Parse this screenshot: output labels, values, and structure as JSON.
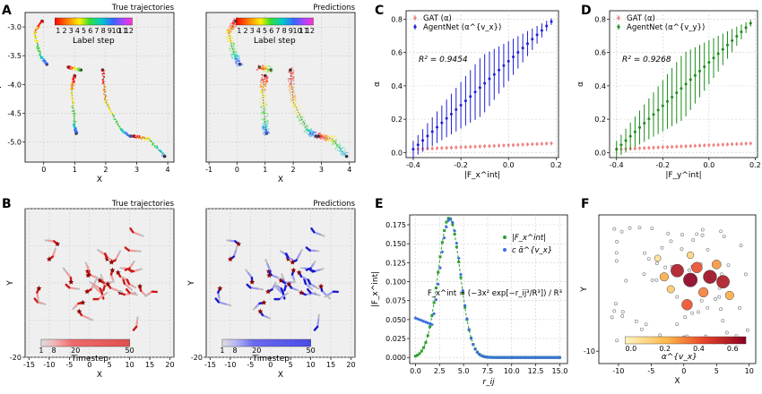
{
  "figure": {
    "panel_letters": {
      "A": "A",
      "B": "B",
      "C": "C",
      "D": "D",
      "E": "E",
      "F": "F"
    }
  },
  "chart_data": [
    {
      "panel": "A-left",
      "type": "scatter",
      "title": "True trajectories",
      "xlabel": "X",
      "ylabel": "Y",
      "xlim": [
        -0.6,
        4.2
      ],
      "ylim": [
        -5.35,
        -2.75
      ],
      "xticks": [
        "0",
        "1",
        "2",
        "3",
        "4"
      ],
      "yticks": [
        "-3.0",
        "-3.5",
        "-4.0",
        "-4.5",
        "-5.0"
      ],
      "colorbar_label": "Label step",
      "colorbar_ticks": [
        "1",
        "2",
        "3",
        "4",
        "5",
        "6",
        "7",
        "8",
        "9",
        "10",
        "11",
        "12"
      ],
      "trajectories": [
        [
          [
            -0.05,
            -2.9
          ],
          [
            -0.3,
            -3.1
          ],
          [
            -0.1,
            -3.5
          ],
          [
            0.1,
            -3.65
          ]
        ],
        [
          [
            0.8,
            -3.7
          ],
          [
            1.2,
            -3.75
          ]
        ],
        [
          [
            1.0,
            -3.85
          ],
          [
            0.9,
            -4.1
          ],
          [
            1.0,
            -4.7
          ],
          [
            1.05,
            -4.85
          ]
        ],
        [
          [
            1.9,
            -3.75
          ],
          [
            2.0,
            -4.3
          ],
          [
            2.5,
            -4.8
          ],
          [
            2.8,
            -4.9
          ]
        ],
        [
          [
            2.9,
            -4.9
          ],
          [
            3.4,
            -4.95
          ],
          [
            3.9,
            -5.25
          ]
        ]
      ]
    },
    {
      "panel": "A-right",
      "type": "scatter",
      "title": "Predictions",
      "xlabel": "X",
      "ylabel": "",
      "xlim": [
        -1.1,
        4.2
      ],
      "ylim": [
        -5.35,
        -2.75
      ],
      "xticks": [
        "-1",
        "0",
        "1",
        "2",
        "3",
        "4"
      ],
      "yticks": [
        "-3.0",
        "-3.5",
        "-4.0",
        "-4.5",
        "-5.0"
      ],
      "colorbar_label": "Label step",
      "colorbar_ticks": [
        "1",
        "2",
        "3",
        "4",
        "5",
        "6",
        "7",
        "8",
        "9",
        "10",
        "11",
        "12"
      ]
    },
    {
      "panel": "B-left",
      "type": "scatter",
      "title": "True trajectories",
      "xlabel": "X",
      "ylabel": "Y",
      "xlim": [
        -16,
        21
      ],
      "ylim": [
        -20,
        20
      ],
      "xticks": [
        "-15",
        "-10",
        "-5",
        "0",
        "5",
        "10",
        "15",
        "20"
      ],
      "yticks": [
        "-20"
      ],
      "colorbar_label": "Timestep",
      "colorbar_ticks": [
        "1",
        "8",
        "20",
        "50"
      ]
    },
    {
      "panel": "B-right",
      "type": "scatter",
      "title": "Predictions",
      "xlabel": "X",
      "ylabel": "Y",
      "xlim": [
        -16,
        21
      ],
      "ylim": [
        -20,
        20
      ],
      "xticks": [
        "-15",
        "-10",
        "-5",
        "0",
        "5",
        "10",
        "15",
        "20"
      ],
      "yticks": [
        "-20"
      ],
      "colorbar_label": "Timestep",
      "colorbar_ticks": [
        "1",
        "8",
        "20",
        "50"
      ]
    },
    {
      "panel": "C",
      "type": "scatter",
      "xlabel": "|F_x^int|",
      "ylabel": "α",
      "xlim": [
        -0.43,
        0.21
      ],
      "ylim": [
        -0.03,
        0.85
      ],
      "xticks": [
        "-0.4",
        "-0.2",
        "0.0",
        "0.2"
      ],
      "yticks": [
        "0.0",
        "0.2",
        "0.4",
        "0.6",
        "0.8"
      ],
      "annotation": "R² = 0.9454",
      "legend": [
        "GAT (α)",
        "AgentNet (α^{v_x})"
      ],
      "series": [
        {
          "name": "GAT (α)",
          "color": "#f08080",
          "start": 0.02,
          "end": 0.055,
          "err": 0.012
        },
        {
          "name": "AgentNet (α^{v_x})",
          "color": "#1f1fd6",
          "start": 0.02,
          "end": 0.785,
          "err_start": 0.05,
          "err_mid": 0.18,
          "err_end": 0.02
        }
      ]
    },
    {
      "panel": "D",
      "type": "scatter",
      "xlabel": "|F_y^int|",
      "ylabel": "α",
      "xlim": [
        -0.43,
        0.21
      ],
      "ylim": [
        -0.03,
        0.85
      ],
      "xticks": [
        "-0.4",
        "-0.2",
        "0.0",
        "0.2"
      ],
      "yticks": [
        "0.0",
        "0.2",
        "0.4",
        "0.6",
        "0.8"
      ],
      "annotation": "R² = 0.9268",
      "legend": [
        "GAT (α)",
        "AgentNet (α^{v_y})"
      ],
      "series": [
        {
          "name": "GAT (α)",
          "color": "#f08080",
          "start": 0.02,
          "end": 0.055,
          "err": 0.012
        },
        {
          "name": "AgentNet (α^{v_y})",
          "color": "#1a8c1a",
          "start": 0.02,
          "end": 0.775,
          "err_start": 0.05,
          "err_mid": 0.2,
          "err_end": 0.02
        }
      ]
    },
    {
      "panel": "E",
      "type": "line",
      "xlabel": "r_ij",
      "ylabel": "|F_x^int|",
      "xlim": [
        -0.6,
        15.8
      ],
      "ylim": [
        -0.008,
        0.188
      ],
      "xticks": [
        "0.0",
        "2.5",
        "5.0",
        "7.5",
        "10.0",
        "12.5",
        "15.0"
      ],
      "yticks": [
        "0.000",
        "0.025",
        "0.050",
        "0.075",
        "0.100",
        "0.125",
        "0.150",
        "0.175"
      ],
      "legend": [
        "|F_x^int|",
        "c α̃^{v_x}"
      ],
      "formula": "F_x^int = (−3x² exp[−r_ij³/R³]) / R³",
      "formula_denom": "R³",
      "series": [
        {
          "name": "|F_x^int|",
          "color": "#2ca02c",
          "peak_x": 3.5,
          "peak_y": 0.184
        },
        {
          "name": "c α̃^{v_x}",
          "color": "#3a6fe0",
          "peak_x": 3.6,
          "peak_y": 0.183
        }
      ]
    },
    {
      "panel": "F",
      "type": "scatter",
      "xlabel": "X",
      "ylabel": "Y",
      "xlim": [
        -13,
        11
      ],
      "ylim": [
        -12,
        12
      ],
      "xticks": [
        "-10",
        "-5",
        "0",
        "5",
        "10"
      ],
      "yticks": [
        "-10"
      ],
      "colorbar_label": "α^{v_x}",
      "colorbar_ticks": [
        "0.0",
        "0.2",
        "0.4",
        "0.6"
      ]
    }
  ]
}
